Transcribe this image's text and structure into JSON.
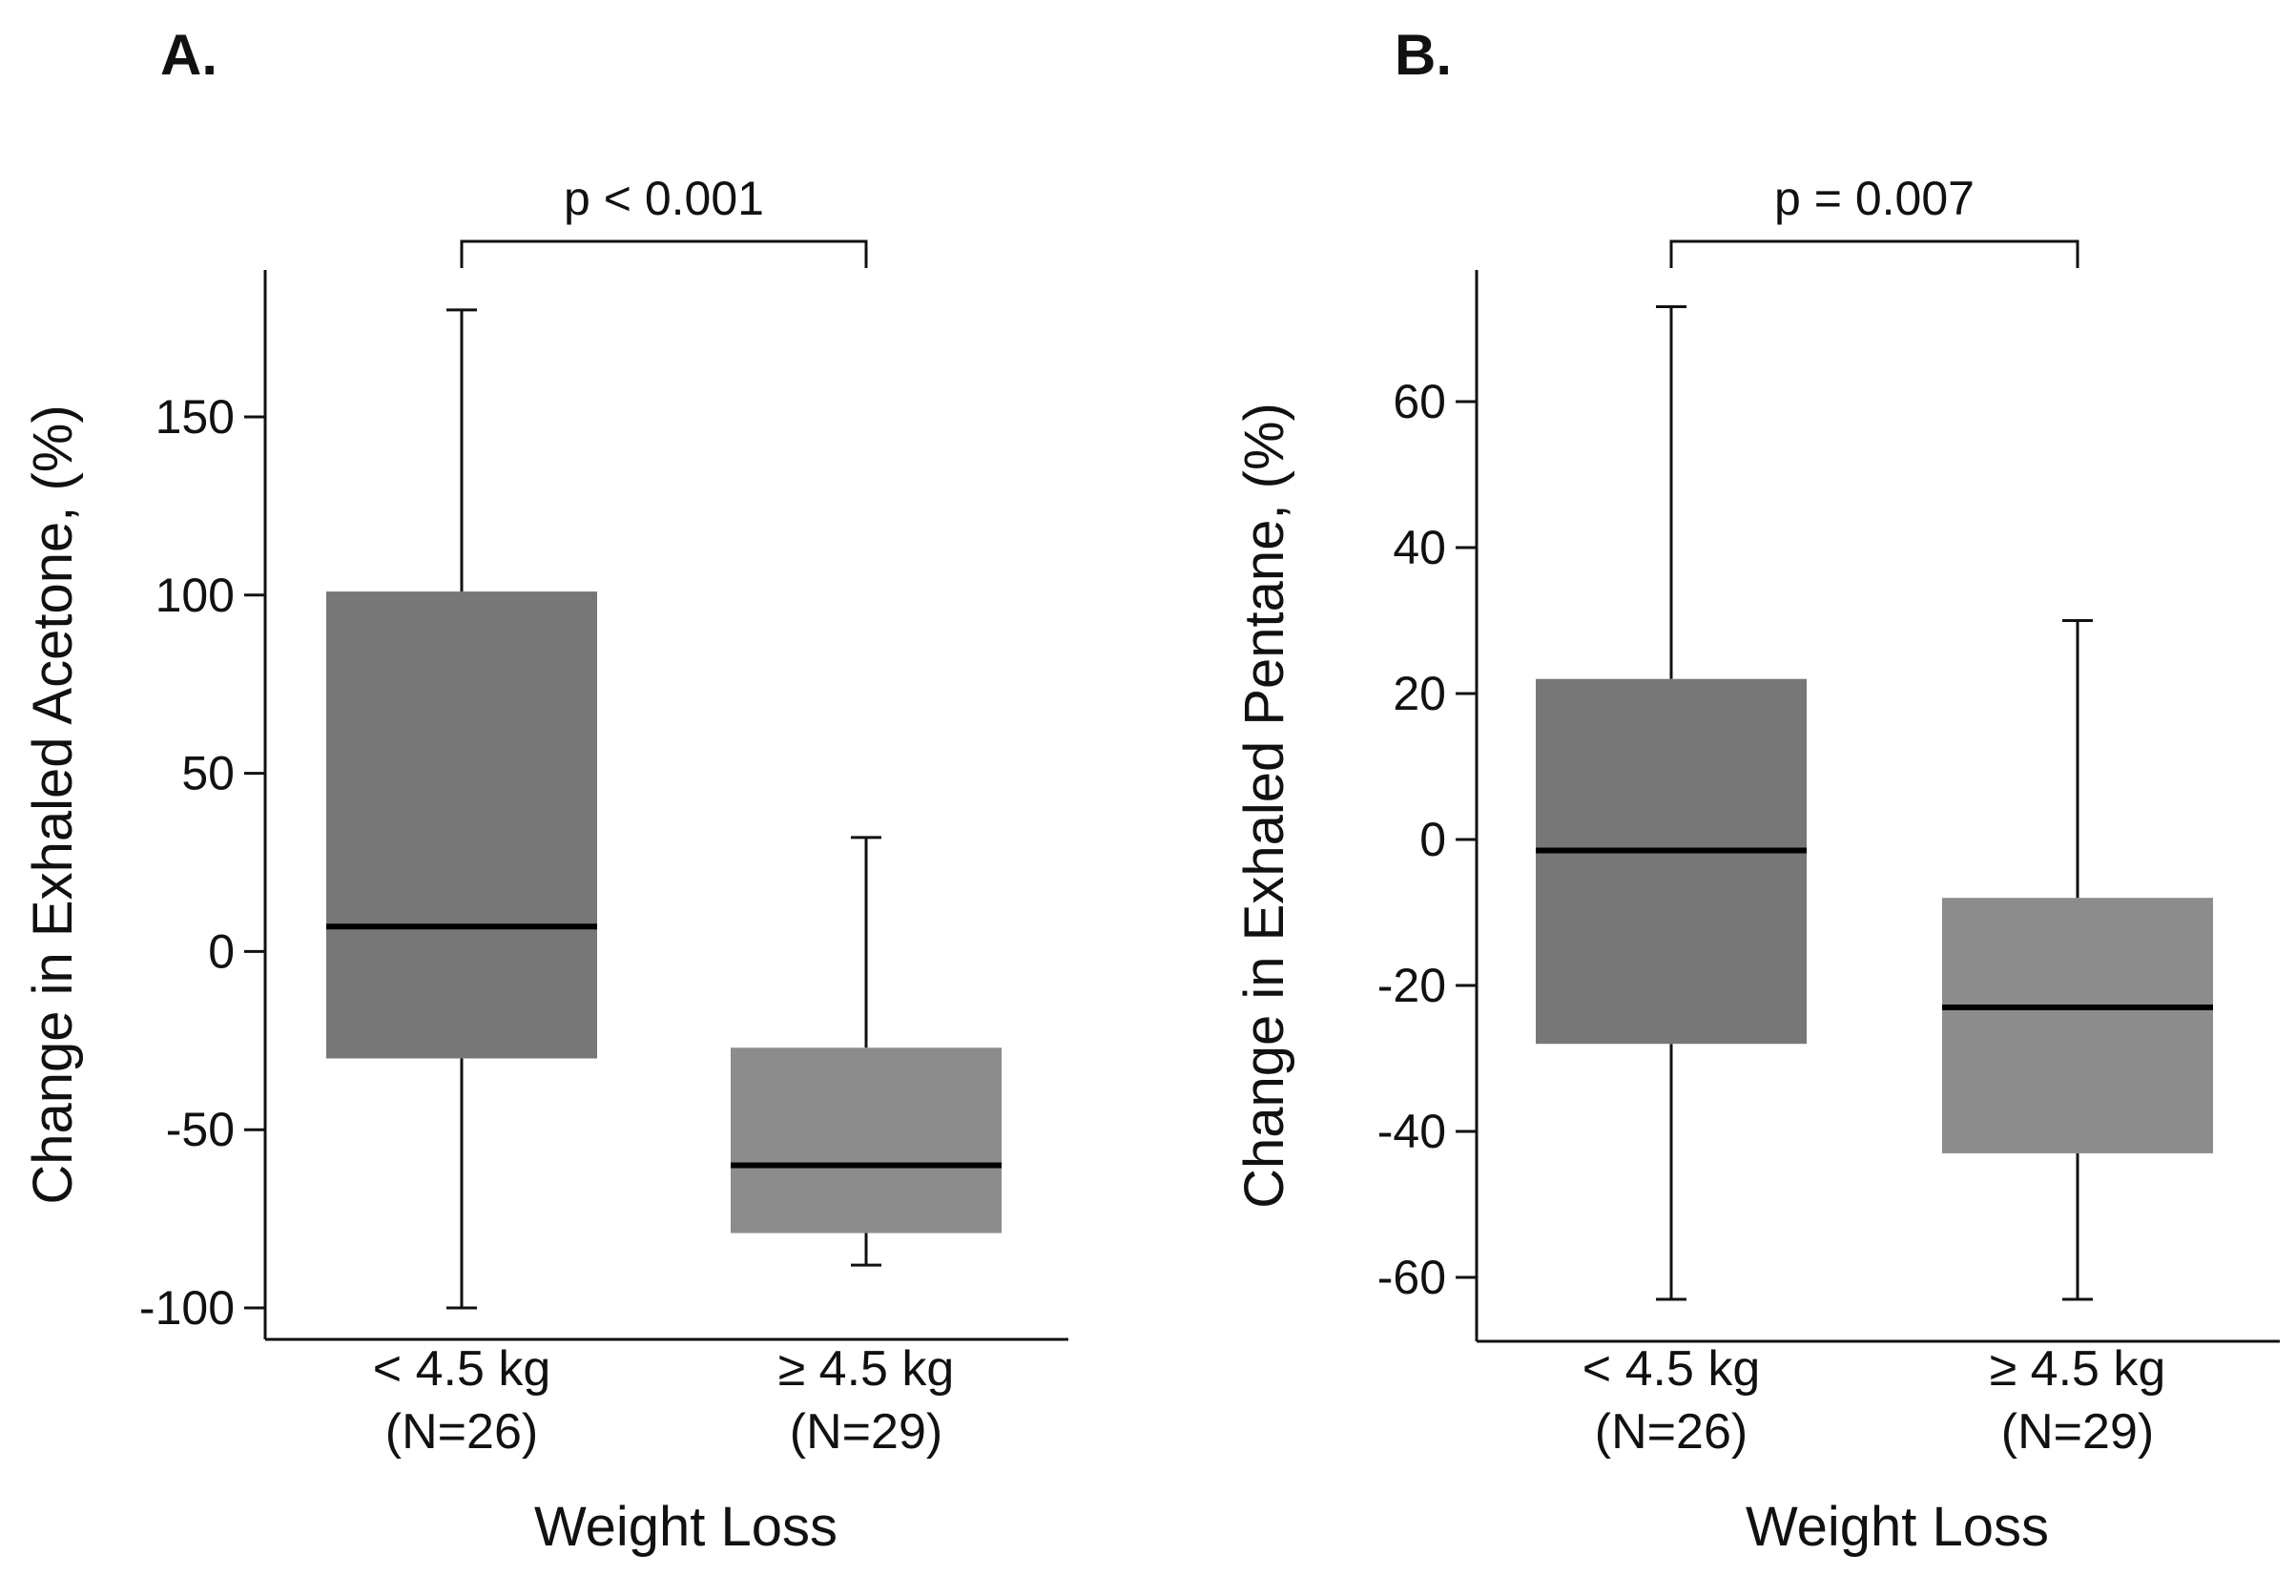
{
  "chart_data": [
    {
      "type": "boxplot",
      "panel_label": "A.",
      "xlabel": "Weight Loss",
      "ylabel": "Change in Exhaled Acetone, (%)",
      "ylim": [
        -105,
        195
      ],
      "yticks": [
        {
          "value": 150,
          "label": "150"
        },
        {
          "value": 100,
          "label": "100"
        },
        {
          "value": 50,
          "label": "50"
        },
        {
          "value": 0,
          "label": "0"
        },
        {
          "value": -50,
          "label": "-50"
        },
        {
          "value": -100,
          "label": "-100"
        }
      ],
      "categories": [
        {
          "label": "< 4.5 kg",
          "n_label": "(N=26)"
        },
        {
          "label": "≥ 4.5 kg",
          "n_label": "(N=29)"
        }
      ],
      "boxes": [
        {
          "whisker_low": -100,
          "q1": -30,
          "median": 7,
          "q3": 101,
          "whisker_high": 180,
          "color": "#777777"
        },
        {
          "whisker_low": -88,
          "q1": -79,
          "median": -60,
          "q3": -27,
          "whisker_high": 32,
          "color": "#8c8c8c"
        }
      ],
      "annotation": {
        "text": "p < 0.001"
      }
    },
    {
      "type": "boxplot",
      "panel_label": "B.",
      "xlabel": "Weight Loss",
      "ylabel": "Change in Exhaled Pentane, (%)",
      "ylim": [
        -69,
        78
      ],
      "yticks": [
        {
          "value": 60,
          "label": "60"
        },
        {
          "value": 40,
          "label": "40"
        },
        {
          "value": 20,
          "label": "20"
        },
        {
          "value": 0,
          "label": "0"
        },
        {
          "value": -20,
          "label": "-20"
        },
        {
          "value": -40,
          "label": "-40"
        },
        {
          "value": -60,
          "label": "-60"
        }
      ],
      "categories": [
        {
          "label": "< 4.5 kg",
          "n_label": "(N=26)"
        },
        {
          "label": "≥ 4.5 kg",
          "n_label": "(N=29)"
        }
      ],
      "boxes": [
        {
          "whisker_low": -63,
          "q1": -28,
          "median": -1.5,
          "q3": 22,
          "whisker_high": 73,
          "color": "#777777"
        },
        {
          "whisker_low": -63,
          "q1": -43,
          "median": -23,
          "q3": -8,
          "whisker_high": 30,
          "color": "#8c8c8c"
        }
      ],
      "annotation": {
        "text": "p = 0.007"
      }
    }
  ]
}
